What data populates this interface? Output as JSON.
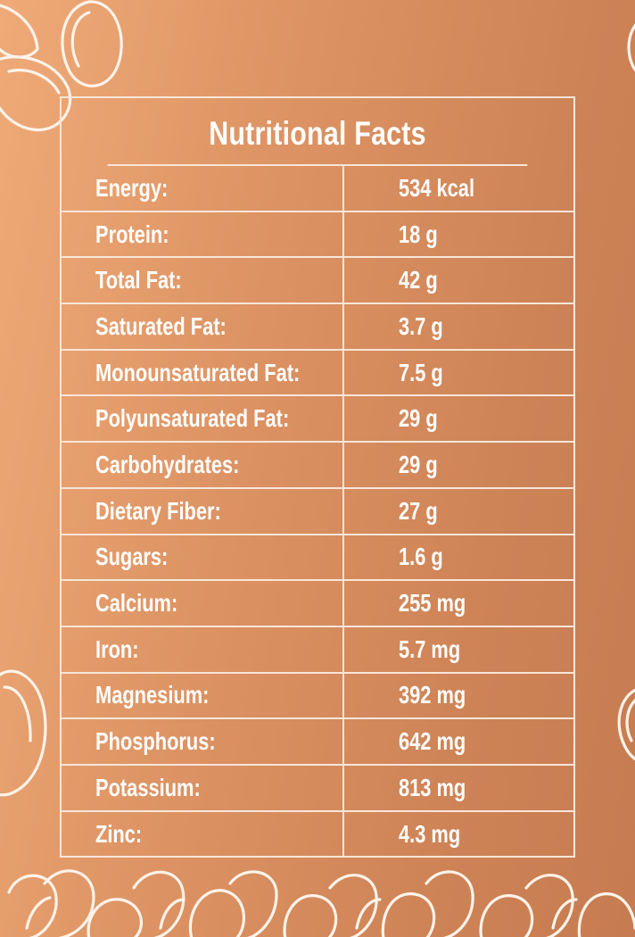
{
  "colors": {
    "background_start": "#efaa78",
    "background_end": "#c67c50",
    "lines": "#f6e6da",
    "text": "#ffffff"
  },
  "decoration_icon": "pumpkin-seed-outline-icon",
  "title": "Nutritional Facts",
  "rows": [
    {
      "label": "Energy:",
      "value": "534 kcal"
    },
    {
      "label": "Protein:",
      "value": "18 g"
    },
    {
      "label": "Total Fat:",
      "value": "42 g"
    },
    {
      "label": "Saturated Fat:",
      "value": "3.7 g"
    },
    {
      "label": "Monounsaturated Fat:",
      "value": "7.5 g"
    },
    {
      "label": "Polyunsaturated Fat:",
      "value": "29 g"
    },
    {
      "label": "Carbohydrates:",
      "value": "29 g"
    },
    {
      "label": "Dietary Fiber:",
      "value": "27 g"
    },
    {
      "label": "Sugars:",
      "value": "1.6 g"
    },
    {
      "label": "Calcium:",
      "value": "255 mg"
    },
    {
      "label": "Iron:",
      "value": "5.7 mg"
    },
    {
      "label": "Magnesium:",
      "value": "392 mg"
    },
    {
      "label": "Phosphorus:",
      "value": "642 mg"
    },
    {
      "label": "Potassium:",
      "value": "813 mg"
    },
    {
      "label": "Zinc:",
      "value": "4.3 mg"
    }
  ]
}
